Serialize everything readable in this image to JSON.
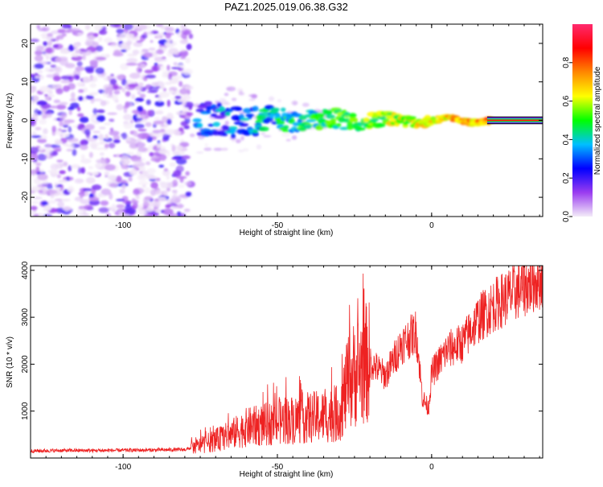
{
  "title": "PAZ1.2025.019.06.38.G32",
  "chart_data": [
    {
      "type": "heatmap",
      "name": "spectrogram",
      "xlabel": "Height of straight line (km)",
      "ylabel": "Frequency (Hz)",
      "xlim": [
        -130,
        36
      ],
      "ylim": [
        -25,
        25
      ],
      "xticks": [
        -100,
        -50,
        0
      ],
      "yticks": [
        -20,
        -10,
        0,
        10,
        20
      ],
      "xtick_labels": [
        "-100",
        "-50",
        "0"
      ],
      "ytick_labels": [
        "-20",
        "-10",
        "0",
        "10",
        "20"
      ],
      "noise_region": [
        -130,
        -78
      ],
      "signal_band_center_hz": 0,
      "colorbar": {
        "label": "Normalized spectral amplitude",
        "range": [
          0,
          1
        ],
        "ticks": [
          0.0,
          0.2,
          0.4,
          0.6,
          0.8
        ],
        "tick_labels": [
          "0.0",
          "0.2",
          "0.4",
          "0.6",
          "0.8"
        ],
        "colors": [
          "#f4ecf8",
          "#9a3cf0",
          "#0000ff",
          "#00bfff",
          "#00ff00",
          "#ffff00",
          "#ff8800",
          "#ff0000",
          "#ff2a6e"
        ]
      }
    },
    {
      "type": "line",
      "name": "snr",
      "xlabel": "Height of straight line (km)",
      "ylabel": "SNR (10 * v/v)",
      "xlim": [
        -130,
        36
      ],
      "ylim": [
        0,
        4100
      ],
      "xticks": [
        -100,
        -50,
        0
      ],
      "yticks": [
        1000,
        2000,
        3000,
        4000
      ],
      "xtick_labels": [
        "-100",
        "-50",
        "0"
      ],
      "ytick_labels": [
        "1000",
        "2000",
        "3000",
        "4000"
      ],
      "color": "#ee2222",
      "series": [
        {
          "name": "SNR",
          "x": [
            -130,
            -120,
            -110,
            -100,
            -90,
            -80,
            -76,
            -70,
            -65,
            -60,
            -55,
            -50,
            -45,
            -40,
            -35,
            -30,
            -27,
            -25,
            -22,
            -20,
            -15,
            -10,
            -5,
            -3,
            -1,
            0,
            3,
            5,
            10,
            15,
            20,
            25,
            30,
            36
          ],
          "y": [
            150,
            160,
            160,
            165,
            170,
            180,
            250,
            380,
            500,
            650,
            700,
            760,
            820,
            860,
            880,
            950,
            1600,
            1800,
            2000,
            2050,
            1750,
            2400,
            2700,
            1300,
            1050,
            1800,
            2100,
            2300,
            2450,
            2950,
            3250,
            3450,
            3650,
            3850
          ]
        }
      ]
    }
  ]
}
